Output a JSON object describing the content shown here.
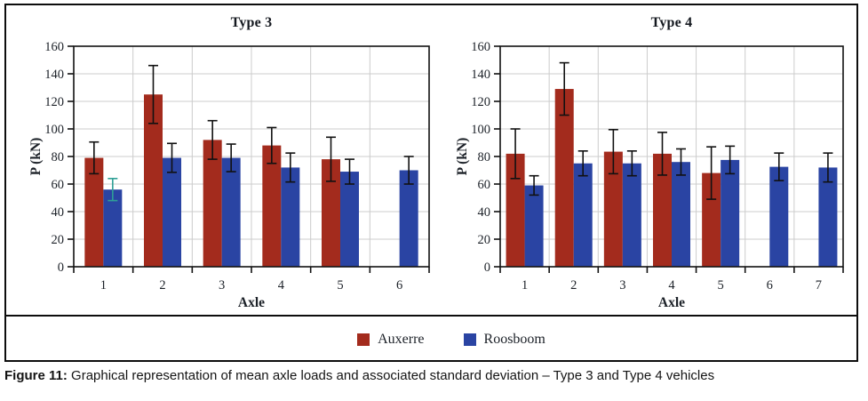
{
  "figure": {
    "caption_label": "Figure 11:",
    "caption_text": " Graphical representation of mean axle loads and associated standard deviation – Type 3 and Type 4 vehicles"
  },
  "legend": {
    "position": "bottom-center",
    "items": [
      {
        "label": "Auxerre",
        "color": "#a32b1d"
      },
      {
        "label": "Roosboom",
        "color": "#2a44a3"
      }
    ]
  },
  "colors": {
    "auxerre": "#a32b1d",
    "roosboom": "#2a44a3",
    "error_bar_default": "#111111",
    "error_bar_teal_outlier": "#2fa096",
    "gridline": "#cccccc",
    "axis": "#111111"
  },
  "chart_data": [
    {
      "type": "bar",
      "title": "Type 3",
      "xlabel": "Axle",
      "ylabel": "P (kN)",
      "ylim": [
        0,
        160
      ],
      "ytick_step": 20,
      "grid": true,
      "categories": [
        "1",
        "2",
        "3",
        "4",
        "5",
        "6"
      ],
      "series": [
        {
          "name": "Auxerre",
          "color": "#a32b1d",
          "values": [
            79,
            125,
            92,
            88,
            78,
            null
          ],
          "errors": [
            11.5,
            21,
            14,
            13,
            16,
            null
          ]
        },
        {
          "name": "Roosboom",
          "color": "#2a44a3",
          "values": [
            56,
            79,
            79,
            72,
            69,
            70
          ],
          "errors": [
            8,
            10.5,
            10,
            10.5,
            9,
            10
          ],
          "error_colors": [
            "#2fa096",
            null,
            null,
            null,
            null,
            null
          ]
        }
      ]
    },
    {
      "type": "bar",
      "title": "Type 4",
      "xlabel": "Axle",
      "ylabel": "P (kN)",
      "ylim": [
        0,
        160
      ],
      "ytick_step": 20,
      "grid": true,
      "categories": [
        "1",
        "2",
        "3",
        "4",
        "5",
        "6",
        "7"
      ],
      "series": [
        {
          "name": "Auxerre",
          "color": "#a32b1d",
          "values": [
            82,
            129,
            83.5,
            82,
            68,
            null,
            null
          ],
          "errors": [
            18,
            19,
            16,
            15.5,
            19,
            null,
            null
          ]
        },
        {
          "name": "Roosboom",
          "color": "#2a44a3",
          "values": [
            59,
            75,
            75,
            76,
            77.5,
            72.5,
            72
          ],
          "errors": [
            7,
            9,
            9,
            9.5,
            10,
            10,
            10.5
          ]
        }
      ]
    }
  ]
}
